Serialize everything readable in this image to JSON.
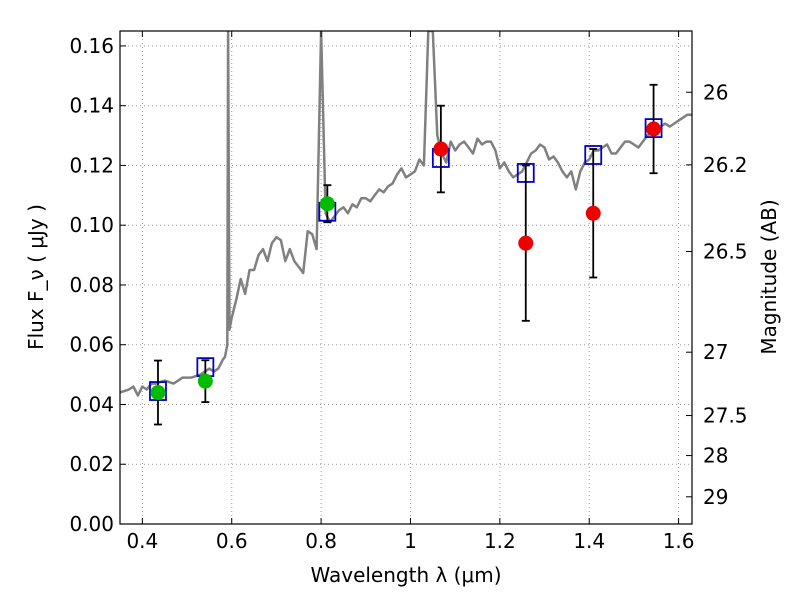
{
  "chart_data": {
    "type": "scatter",
    "xlabel": "Wavelength  λ (μm)",
    "ylabel": "Flux  F_ν  ( μJy )",
    "ylabel_right": "Magnitude (AB)",
    "xlim": [
      0.35,
      1.63
    ],
    "ylim": [
      0.0,
      0.165
    ],
    "grid": true,
    "x_ticks": [
      0.4,
      0.6,
      0.8,
      1.0,
      1.2,
      1.4,
      1.6
    ],
    "x_tick_labels": [
      "0.4",
      "0.6",
      "0.8",
      "1",
      "1.2",
      "1.4",
      "1.6"
    ],
    "y_ticks": [
      0.0,
      0.02,
      0.04,
      0.06,
      0.08,
      0.1,
      0.12,
      0.14,
      0.16
    ],
    "y_tick_labels": [
      "0.00",
      "0.02",
      "0.04",
      "0.06",
      "0.08",
      "0.10",
      "0.12",
      "0.14",
      "0.16"
    ],
    "right_ticks": [
      {
        "label": "26",
        "flux": 0.1445
      },
      {
        "label": "26.2",
        "flux": 0.1202
      },
      {
        "label": "26.5",
        "flux": 0.0912
      },
      {
        "label": "27",
        "flux": 0.0575
      },
      {
        "label": "27.5",
        "flux": 0.0363
      },
      {
        "label": "28",
        "flux": 0.0229
      },
      {
        "label": "29",
        "flux": 0.0091
      }
    ],
    "colors": {
      "spectrum": "#808080",
      "model_box": "#0000cc",
      "green_point": "#00bb00",
      "red_point": "#ee0000",
      "errorbar": "#000000",
      "grid": "#999999"
    },
    "series": [
      {
        "kind": "spectrum",
        "x": [
          0.35,
          0.37,
          0.38,
          0.39,
          0.4,
          0.41,
          0.42,
          0.43,
          0.45,
          0.47,
          0.49,
          0.51,
          0.53,
          0.55,
          0.56,
          0.57,
          0.58,
          0.585,
          0.59,
          0.592,
          0.595,
          0.6,
          0.61,
          0.62,
          0.63,
          0.64,
          0.65,
          0.66,
          0.67,
          0.68,
          0.69,
          0.7,
          0.71,
          0.72,
          0.73,
          0.74,
          0.75,
          0.76,
          0.77,
          0.78,
          0.79,
          0.8,
          0.81,
          0.82,
          0.83,
          0.84,
          0.85,
          0.86,
          0.87,
          0.88,
          0.89,
          0.9,
          0.91,
          0.92,
          0.93,
          0.94,
          0.95,
          0.96,
          0.97,
          0.98,
          0.99,
          1.0,
          1.01,
          1.02,
          1.03,
          1.04,
          1.05,
          1.06,
          1.07,
          1.08,
          1.09,
          1.1,
          1.11,
          1.12,
          1.13,
          1.14,
          1.15,
          1.16,
          1.17,
          1.18,
          1.19,
          1.2,
          1.21,
          1.22,
          1.23,
          1.24,
          1.25,
          1.26,
          1.27,
          1.28,
          1.29,
          1.3,
          1.31,
          1.32,
          1.33,
          1.34,
          1.35,
          1.36,
          1.37,
          1.38,
          1.39,
          1.4,
          1.41,
          1.42,
          1.43,
          1.44,
          1.45,
          1.46,
          1.47,
          1.48,
          1.49,
          1.5,
          1.51,
          1.52,
          1.53,
          1.54,
          1.55,
          1.56,
          1.57,
          1.58,
          1.59,
          1.6,
          1.61,
          1.62,
          1.63
        ],
        "y": [
          0.044,
          0.045,
          0.046,
          0.043,
          0.046,
          0.045,
          0.047,
          0.047,
          0.048,
          0.047,
          0.049,
          0.049,
          0.05,
          0.052,
          0.051,
          0.052,
          0.055,
          0.056,
          0.06,
          0.165,
          0.065,
          0.069,
          0.075,
          0.082,
          0.077,
          0.085,
          0.085,
          0.09,
          0.092,
          0.088,
          0.094,
          0.096,
          0.095,
          0.088,
          0.092,
          0.088,
          0.086,
          0.084,
          0.098,
          0.097,
          0.092,
          0.165,
          0.104,
          0.101,
          0.103,
          0.105,
          0.106,
          0.104,
          0.107,
          0.106,
          0.109,
          0.109,
          0.108,
          0.11,
          0.112,
          0.111,
          0.113,
          0.114,
          0.117,
          0.119,
          0.116,
          0.117,
          0.118,
          0.122,
          0.12,
          0.165,
          0.165,
          0.13,
          0.124,
          0.121,
          0.128,
          0.125,
          0.127,
          0.128,
          0.126,
          0.124,
          0.129,
          0.127,
          0.128,
          0.128,
          0.125,
          0.119,
          0.121,
          0.118,
          0.116,
          0.117,
          0.118,
          0.121,
          0.124,
          0.125,
          0.127,
          0.126,
          0.122,
          0.123,
          0.121,
          0.118,
          0.116,
          0.118,
          0.112,
          0.118,
          0.121,
          0.122,
          0.125,
          0.125,
          0.126,
          0.127,
          0.124,
          0.124,
          0.126,
          0.128,
          0.128,
          0.127,
          0.126,
          0.128,
          0.13,
          0.131,
          0.133,
          0.133,
          0.134,
          0.133,
          0.134,
          0.135,
          0.136,
          0.137,
          0.137
        ]
      },
      {
        "kind": "model_boxes",
        "x": [
          0.435,
          0.541,
          0.814,
          1.068,
          1.258,
          1.409,
          1.544
        ],
        "y": [
          0.0445,
          0.0525,
          0.1045,
          0.1225,
          0.1175,
          0.1235,
          0.1325
        ]
      },
      {
        "kind": "green_points",
        "x": [
          0.435,
          0.541,
          0.814
        ],
        "y": [
          0.044,
          0.0478,
          0.1072
        ],
        "yerr": [
          0.0107,
          0.007,
          0.0062
        ]
      },
      {
        "kind": "red_points",
        "x": [
          1.068,
          1.258,
          1.409,
          1.544
        ],
        "y": [
          0.1255,
          0.094,
          0.104,
          0.1322
        ],
        "yerr": [
          0.0145,
          0.026,
          0.0215,
          0.0148
        ]
      }
    ]
  }
}
